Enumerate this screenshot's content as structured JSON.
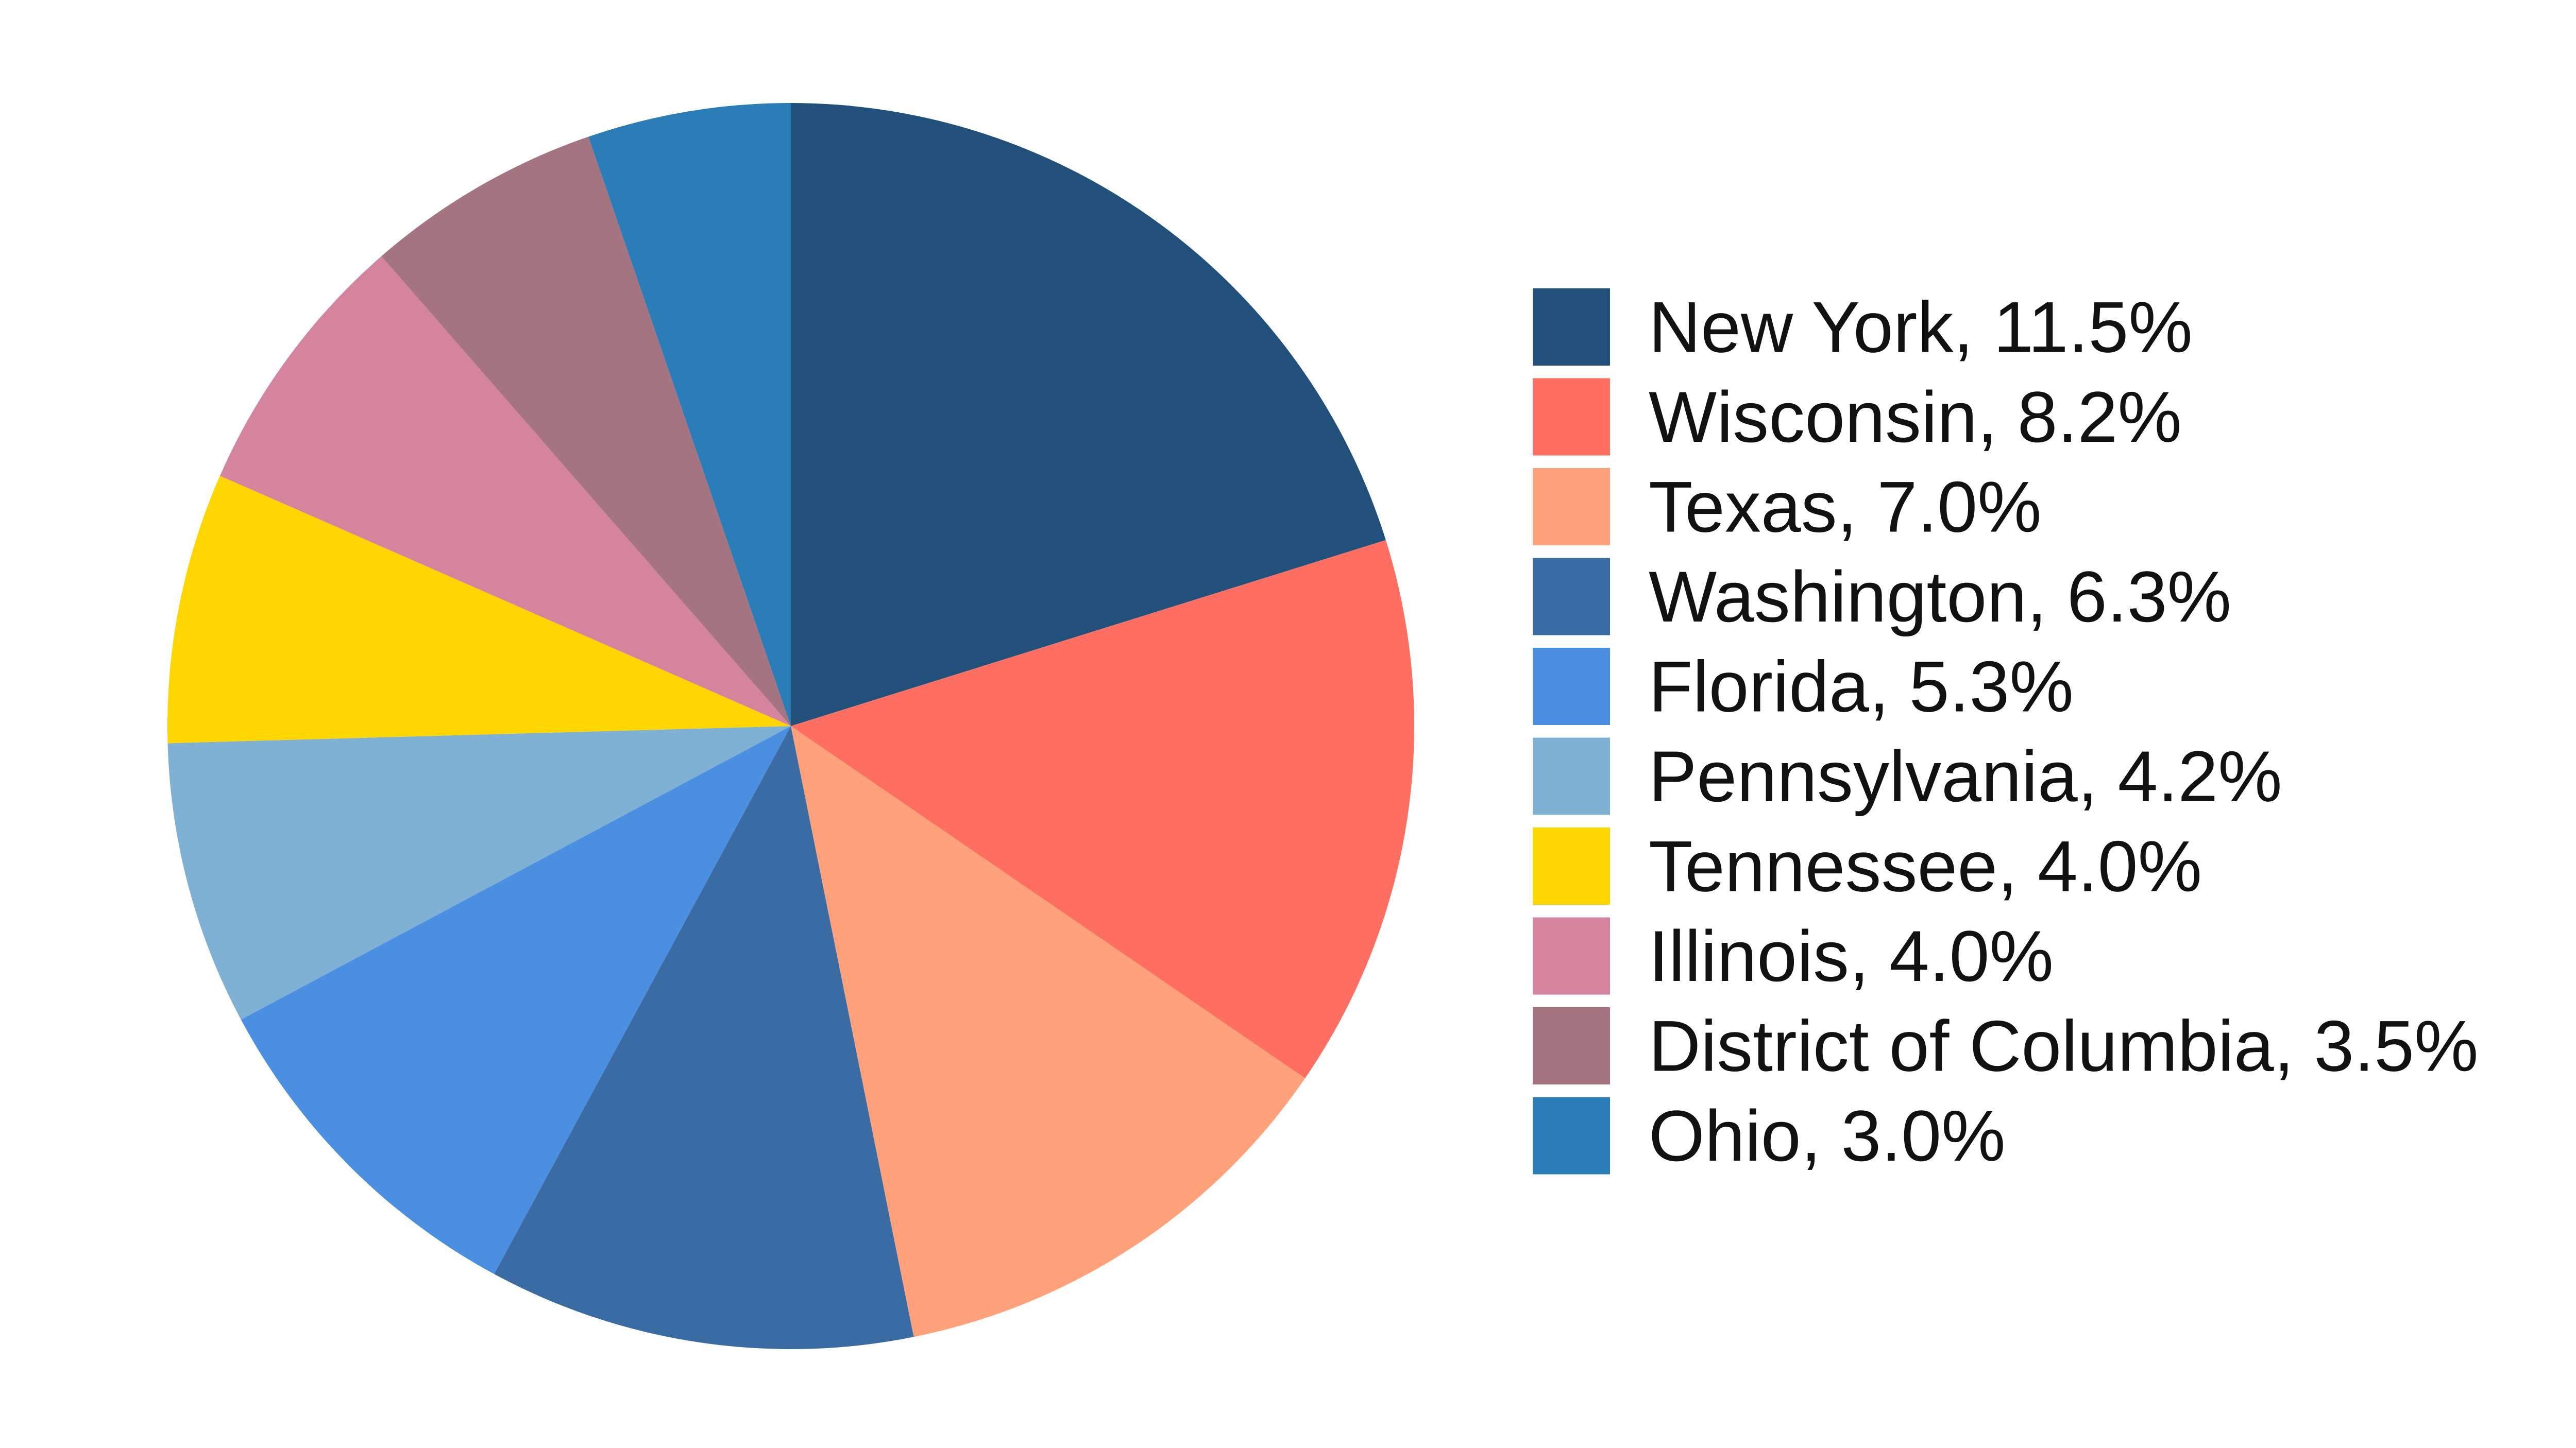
{
  "chart_data": {
    "type": "pie",
    "title": "",
    "start_angle_deg": 0,
    "direction": "clockwise",
    "legend_position": "right",
    "slices": [
      {
        "label": "New York, 11.5%",
        "value": 11.5,
        "color": "#21507B"
      },
      {
        "label": "Wisconsin, 8.2%",
        "value": 8.2,
        "color": "#FF6F61"
      },
      {
        "label": "Texas, 7.0%",
        "value": 7.0,
        "color": "#FFA27B"
      },
      {
        "label": "Washington, 6.3%",
        "value": 6.3,
        "color": "#3A6BA3"
      },
      {
        "label": "Florida, 5.3%",
        "value": 5.3,
        "color": "#4A8FE0"
      },
      {
        "label": "Pennsylvania, 4.2%",
        "value": 4.2,
        "color": "#7FB1D5"
      },
      {
        "label": "Tennessee, 4.0%",
        "value": 4.0,
        "color": "#FFD600"
      },
      {
        "label": "Illinois, 4.0%",
        "value": 4.0,
        "color": "#D4849D"
      },
      {
        "label": "District of Columbia, 3.5%",
        "value": 3.5,
        "color": "#A57481"
      },
      {
        "label": "Ohio, 3.0%",
        "value": 3.0,
        "color": "#2A7DB7"
      }
    ]
  }
}
